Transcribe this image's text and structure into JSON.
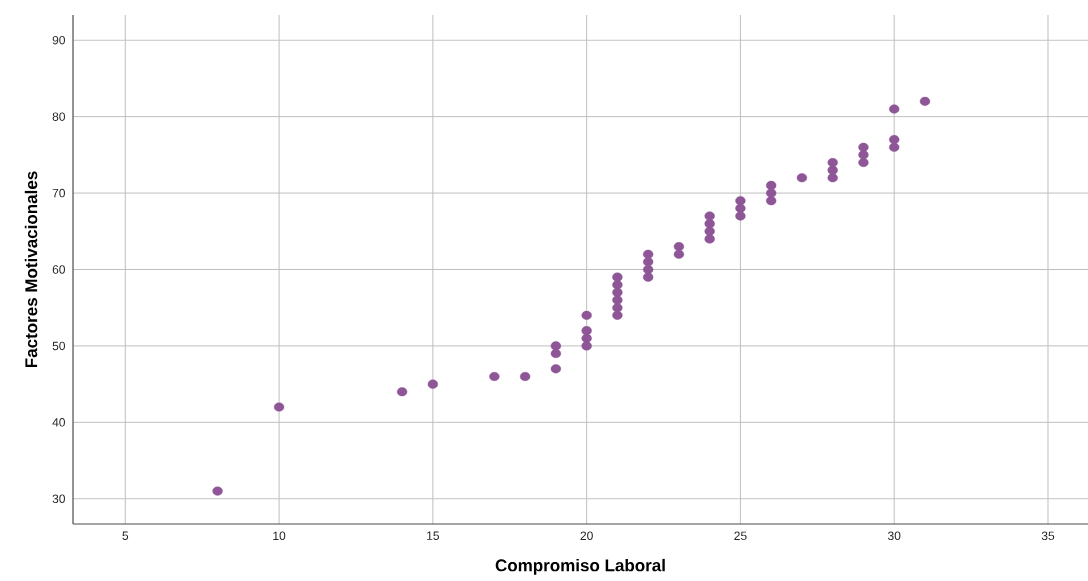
{
  "chart_data": {
    "type": "scatter",
    "xlabel": "Compromiso Laboral",
    "ylabel": "Factores Motivacionales",
    "series": [
      {
        "color": "#8e5597",
        "x": [
          8,
          10,
          14,
          15,
          17,
          18,
          19,
          19,
          19,
          20,
          20,
          20,
          20,
          21,
          21,
          21,
          21,
          21,
          21,
          22,
          22,
          22,
          22,
          23,
          23,
          24,
          24,
          24,
          24,
          25,
          25,
          25,
          26,
          26,
          26,
          27,
          28,
          28,
          28,
          29,
          29,
          29,
          30,
          30,
          30,
          31
        ],
        "values": [
          31,
          42,
          44,
          45,
          46,
          46,
          47,
          49,
          50,
          50,
          51,
          52,
          54,
          54,
          55,
          56,
          57,
          58,
          59,
          59,
          60,
          61,
          62,
          62,
          63,
          64,
          65,
          66,
          67,
          67,
          68,
          69,
          69,
          70,
          71,
          72,
          72,
          73,
          74,
          74,
          75,
          76,
          76,
          77,
          81,
          82
        ]
      }
    ],
    "xlim": [
      3.3,
      36.3
    ],
    "ylim": [
      26.7,
      93.3
    ],
    "xticks": [
      5,
      10,
      15,
      20,
      25,
      30,
      35
    ],
    "yticks": [
      30,
      40,
      50,
      60,
      70,
      80,
      90
    ],
    "grid": true,
    "marker": "circle"
  }
}
